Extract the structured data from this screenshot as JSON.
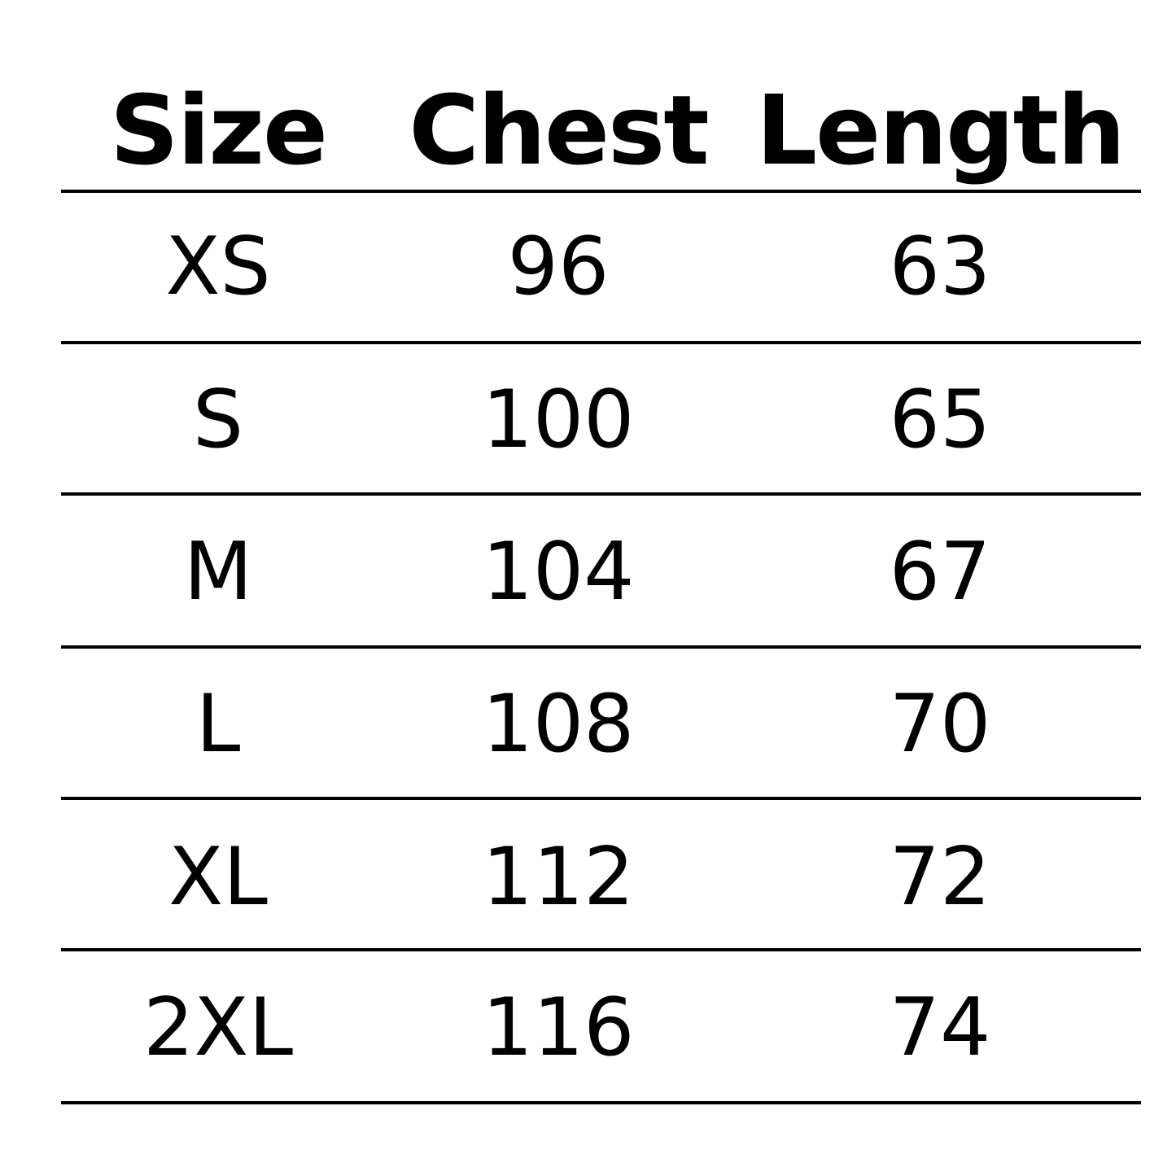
{
  "headers": [
    "Size",
    "Chest",
    "Length"
  ],
  "rows": [
    [
      "XS",
      "96",
      "63"
    ],
    [
      "S",
      "100",
      "65"
    ],
    [
      "M",
      "104",
      "67"
    ],
    [
      "L",
      "108",
      "70"
    ],
    [
      "XL",
      "112",
      "72"
    ],
    [
      "2XL",
      "116",
      "74"
    ]
  ]
}
